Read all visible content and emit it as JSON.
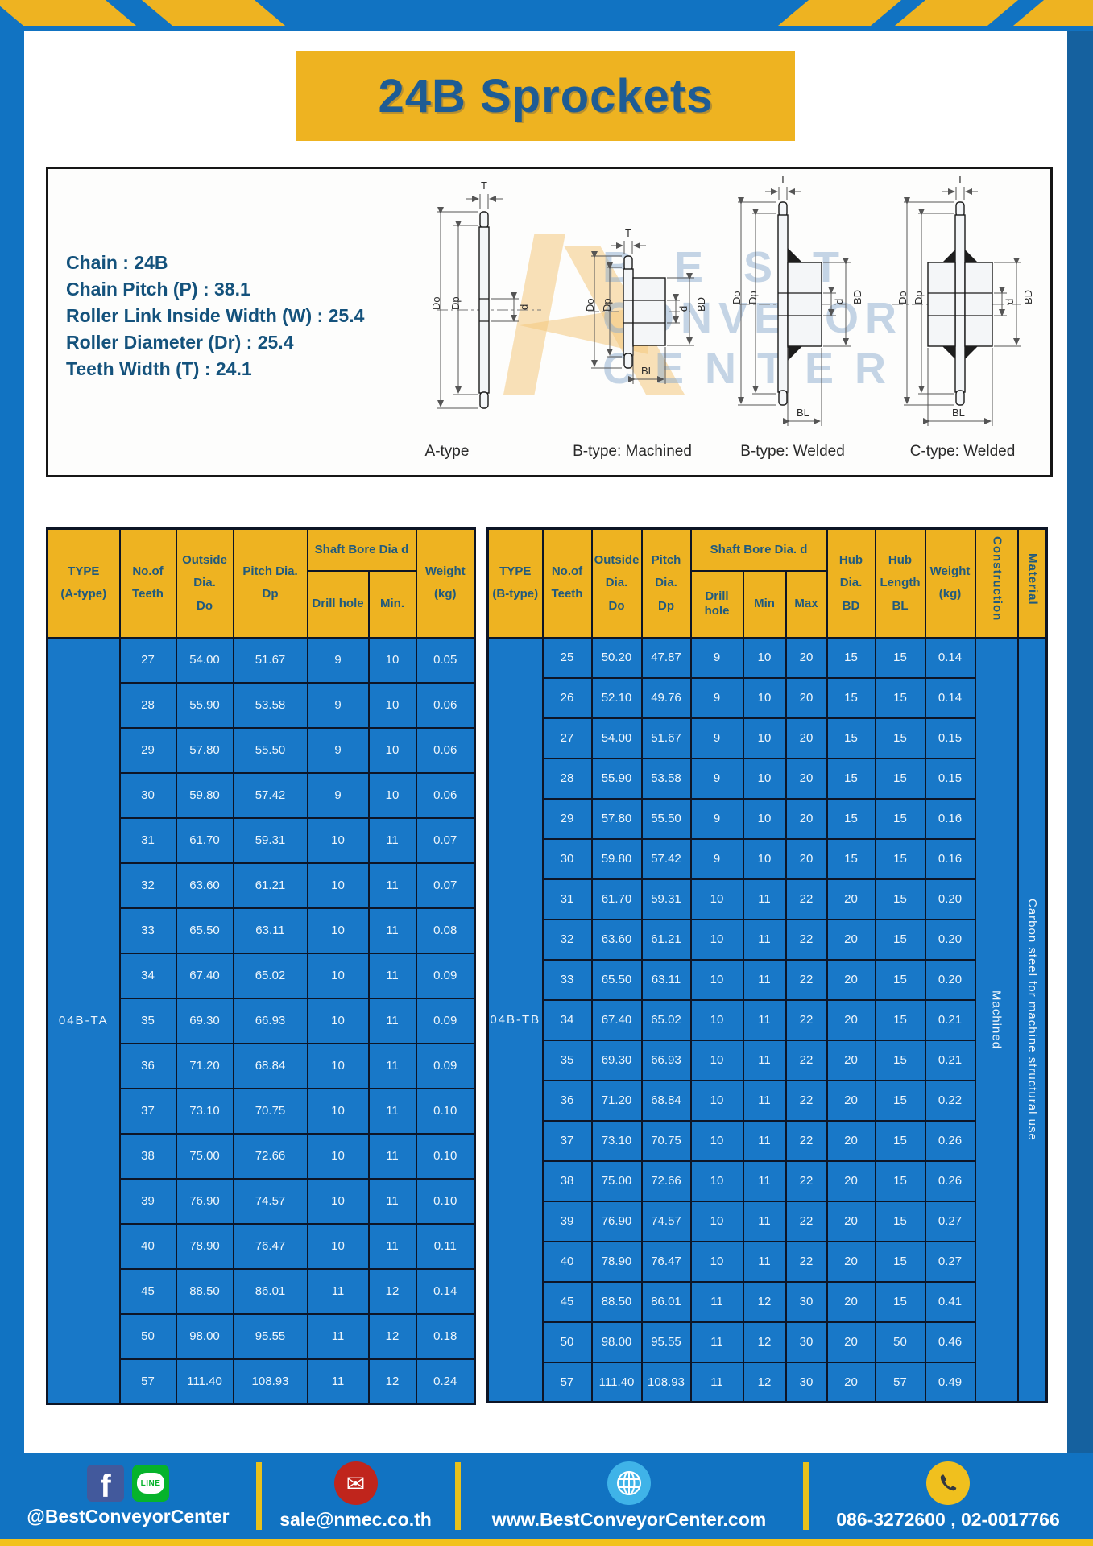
{
  "page": {
    "title": "24B Sprockets"
  },
  "specs": [
    "Chain  : 24B",
    "Chain Pitch (P)  :  38.1",
    "Roller Link Inside Width (W)  :  25.4",
    "Roller Diameter (Dr)  : 25.4",
    "Teeth Width (T)  :  24.1"
  ],
  "watermark": {
    "lines": [
      "BEST",
      "CONVEYOR",
      "CENTER"
    ]
  },
  "diagram": {
    "labels": [
      "A-type",
      "B-type: Machined",
      "B-type: Welded",
      "C-type: Welded"
    ],
    "dims": {
      "t": "T",
      "outside": "Do",
      "pitch": "Dp",
      "bore": "d",
      "hub_dia": "BD",
      "hub_len": "BL"
    }
  },
  "table_a": {
    "headers": {
      "type": "TYPE\n(A-type)",
      "teeth": "No.of\nTeeth",
      "outside": "Outside\nDia.\nDo",
      "pitch": "Pitch Dia.\nDp",
      "shaft_group": "Shaft Bore Dia d",
      "drill": "Drill hole",
      "min": "Min.",
      "weight": "Weight\n(kg)"
    },
    "type_label": "04B-TA",
    "rows": [
      [
        "27",
        "54.00",
        "51.67",
        "9",
        "10",
        "0.05"
      ],
      [
        "28",
        "55.90",
        "53.58",
        "9",
        "10",
        "0.06"
      ],
      [
        "29",
        "57.80",
        "55.50",
        "9",
        "10",
        "0.06"
      ],
      [
        "30",
        "59.80",
        "57.42",
        "9",
        "10",
        "0.06"
      ],
      [
        "31",
        "61.70",
        "59.31",
        "10",
        "11",
        "0.07"
      ],
      [
        "32",
        "63.60",
        "61.21",
        "10",
        "11",
        "0.07"
      ],
      [
        "33",
        "65.50",
        "63.11",
        "10",
        "11",
        "0.08"
      ],
      [
        "34",
        "67.40",
        "65.02",
        "10",
        "11",
        "0.09"
      ],
      [
        "35",
        "69.30",
        "66.93",
        "10",
        "11",
        "0.09"
      ],
      [
        "36",
        "71.20",
        "68.84",
        "10",
        "11",
        "0.09"
      ],
      [
        "37",
        "73.10",
        "70.75",
        "10",
        "11",
        "0.10"
      ],
      [
        "38",
        "75.00",
        "72.66",
        "10",
        "11",
        "0.10"
      ],
      [
        "39",
        "76.90",
        "74.57",
        "10",
        "11",
        "0.10"
      ],
      [
        "40",
        "78.90",
        "76.47",
        "10",
        "11",
        "0.11"
      ],
      [
        "45",
        "88.50",
        "86.01",
        "11",
        "12",
        "0.14"
      ],
      [
        "50",
        "98.00",
        "95.55",
        "11",
        "12",
        "0.18"
      ],
      [
        "57",
        "111.40",
        "108.93",
        "11",
        "12",
        "0.24"
      ]
    ]
  },
  "table_b": {
    "headers": {
      "type": "TYPE\n(B-type)",
      "teeth": "No.of\nTeeth",
      "outside": "Outside\nDia.\nDo",
      "pitch": "Pitch\nDia.\nDp",
      "shaft_group": "Shaft Bore Dia.  d",
      "drill": "Drill hole",
      "min": "Min",
      "max": "Max",
      "hub_dia": "Hub\nDia.\nBD",
      "hub_len": "Hub\nLength\nBL",
      "weight": "Weight\n(kg)",
      "construction": "Construction",
      "material": "Material"
    },
    "type_label": "04B-TB",
    "construction": "Machined",
    "material": "Carbon steel for machine structural use",
    "rows": [
      [
        "25",
        "50.20",
        "47.87",
        "9",
        "10",
        "20",
        "15",
        "15",
        "0.14"
      ],
      [
        "26",
        "52.10",
        "49.76",
        "9",
        "10",
        "20",
        "15",
        "15",
        "0.14"
      ],
      [
        "27",
        "54.00",
        "51.67",
        "9",
        "10",
        "20",
        "15",
        "15",
        "0.15"
      ],
      [
        "28",
        "55.90",
        "53.58",
        "9",
        "10",
        "20",
        "15",
        "15",
        "0.15"
      ],
      [
        "29",
        "57.80",
        "55.50",
        "9",
        "10",
        "20",
        "15",
        "15",
        "0.16"
      ],
      [
        "30",
        "59.80",
        "57.42",
        "9",
        "10",
        "20",
        "15",
        "15",
        "0.16"
      ],
      [
        "31",
        "61.70",
        "59.31",
        "10",
        "11",
        "22",
        "20",
        "15",
        "0.20"
      ],
      [
        "32",
        "63.60",
        "61.21",
        "10",
        "11",
        "22",
        "20",
        "15",
        "0.20"
      ],
      [
        "33",
        "65.50",
        "63.11",
        "10",
        "11",
        "22",
        "20",
        "15",
        "0.20"
      ],
      [
        "34",
        "67.40",
        "65.02",
        "10",
        "11",
        "22",
        "20",
        "15",
        "0.21"
      ],
      [
        "35",
        "69.30",
        "66.93",
        "10",
        "11",
        "22",
        "20",
        "15",
        "0.21"
      ],
      [
        "36",
        "71.20",
        "68.84",
        "10",
        "11",
        "22",
        "20",
        "15",
        "0.22"
      ],
      [
        "37",
        "73.10",
        "70.75",
        "10",
        "11",
        "22",
        "20",
        "15",
        "0.26"
      ],
      [
        "38",
        "75.00",
        "72.66",
        "10",
        "11",
        "22",
        "20",
        "15",
        "0.26"
      ],
      [
        "39",
        "76.90",
        "74.57",
        "10",
        "11",
        "22",
        "20",
        "15",
        "0.27"
      ],
      [
        "40",
        "78.90",
        "76.47",
        "10",
        "11",
        "22",
        "20",
        "15",
        "0.27"
      ],
      [
        "45",
        "88.50",
        "86.01",
        "11",
        "12",
        "30",
        "20",
        "15",
        "0.41"
      ],
      [
        "50",
        "98.00",
        "95.55",
        "11",
        "12",
        "30",
        "20",
        "50",
        "0.46"
      ],
      [
        "57",
        "111.40",
        "108.93",
        "11",
        "12",
        "30",
        "20",
        "57",
        "0.49"
      ]
    ]
  },
  "footer": {
    "social": "@BestConveyorCenter",
    "facebook_glyph": "f",
    "line_label": "LINE",
    "email": "sale@nmec.co.th",
    "website": "www.BestConveyorCenter.com",
    "phone": "086-3272600 , 02-0017766",
    "mail_glyph": "✉"
  },
  "colors": {
    "frame_blue": "#1173c2",
    "accent_yellow": "#eeb321",
    "cell_blue": "#1878c8",
    "border_dark": "#0d1526",
    "header_text": "#215a7d",
    "title_text": "#1e5c94"
  }
}
